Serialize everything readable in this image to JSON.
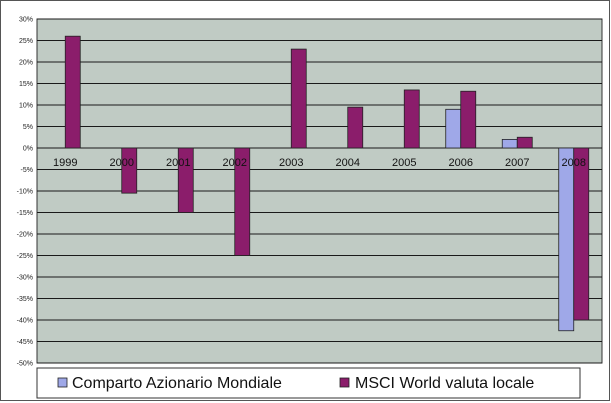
{
  "chart_data": {
    "type": "bar",
    "categories": [
      "1999",
      "2000",
      "2001",
      "2002",
      "2003",
      "2004",
      "2005",
      "2006",
      "2007",
      "2008"
    ],
    "series": [
      {
        "name": "Comparto Azionario Mondiale",
        "color": "#9FA8E8",
        "values": [
          null,
          null,
          null,
          null,
          null,
          null,
          null,
          9,
          2,
          -42.5
        ]
      },
      {
        "name": "MSCI World valuta locale",
        "color": "#8B1D6B",
        "values": [
          26,
          -10.5,
          -15,
          -25,
          23,
          9.5,
          13.5,
          13.2,
          2.5,
          -40
        ]
      }
    ],
    "ylim": [
      -50,
      30
    ],
    "yticks": [
      30,
      25,
      20,
      15,
      10,
      5,
      0,
      -5,
      -10,
      -15,
      -20,
      -25,
      -30,
      -35,
      -40,
      -45,
      -50
    ],
    "ytick_labels": [
      "30%",
      "25%",
      "20%",
      "15%",
      "10%",
      "5%",
      "0%",
      "-5%",
      "-10%",
      "-15%",
      "-20%",
      "-25%",
      "-30%",
      "-35%",
      "-40%",
      "-45%",
      "-50%"
    ],
    "grid": true,
    "legend": "bottom",
    "plot_background": "#C0CBC4"
  }
}
